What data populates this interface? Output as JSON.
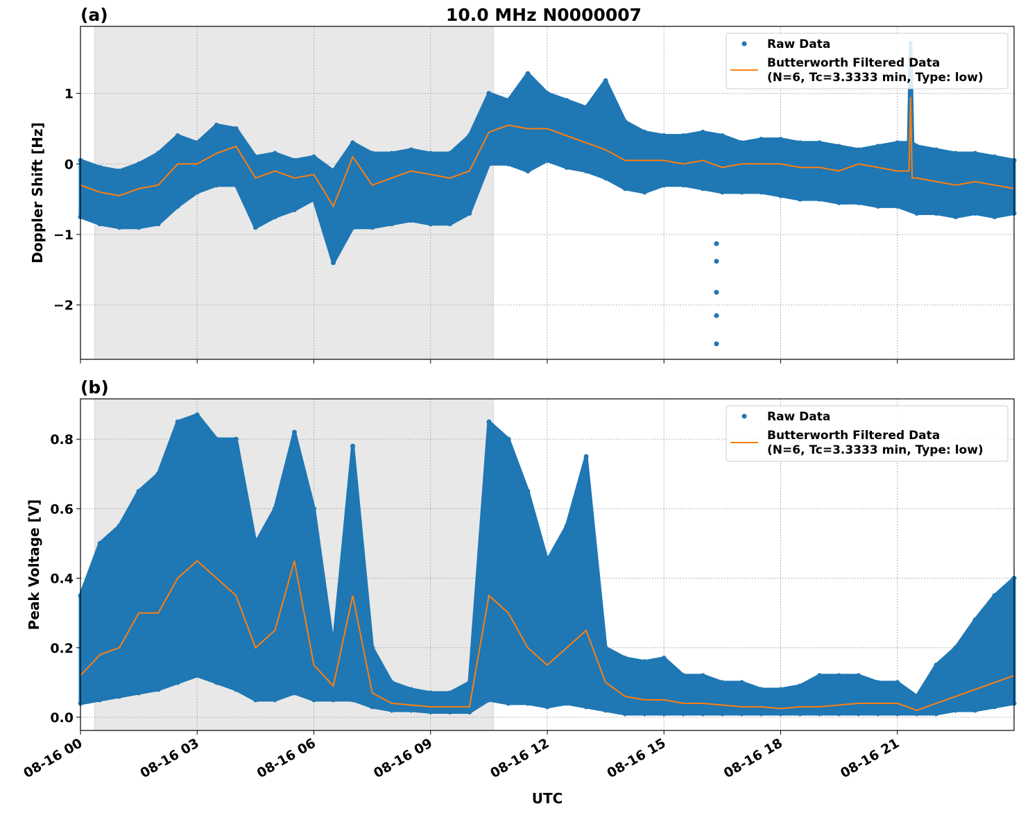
{
  "title": "10.0 MHz N0000007",
  "xlabel": "UTC",
  "colors": {
    "raw": "#1f77b4",
    "filtered": "#ff7f0e",
    "shade": "#e8e8e8"
  },
  "legend": {
    "raw": "Raw Data",
    "filtered_line1": "Butterworth Filtered Data",
    "filtered_line2": "(N=6, Tc=3.3333 min, Type: low)",
    "placement": "upper right"
  },
  "chart_data": [
    {
      "type": "scatter+line",
      "panel_label": "(a)",
      "ylabel": "Doppler Shift [Hz]",
      "xlim_hours": [
        0,
        24
      ],
      "ylim": [
        -2.77,
        1.95
      ],
      "grid": true,
      "shaded_interval": [
        "08-16 00:22",
        "08-16 10:37"
      ],
      "xticks": [
        "08-16 00",
        "08-16 03",
        "08-16 06",
        "08-16 09",
        "08-16 12",
        "08-16 15",
        "08-16 18",
        "08-16 21"
      ],
      "yticks": [
        {
          "v": 1,
          "t": "1"
        },
        {
          "v": 0,
          "t": "0"
        },
        {
          "v": -1,
          "t": "−1"
        },
        {
          "v": -2,
          "t": "−2"
        }
      ],
      "x_hours": [
        0,
        0.5,
        1,
        1.5,
        2,
        2.5,
        3,
        3.5,
        4,
        4.5,
        5,
        5.5,
        6,
        6.5,
        7,
        7.5,
        8,
        8.5,
        9,
        9.5,
        10,
        10.5,
        11,
        11.5,
        12,
        12.5,
        13,
        13.5,
        14,
        14.5,
        15,
        15.5,
        16,
        16.5,
        17,
        17.5,
        18,
        18.5,
        19,
        19.5,
        20,
        20.5,
        21,
        21.5,
        22,
        22.5,
        23,
        23.5,
        24
      ],
      "filtered": [
        -0.3,
        -0.4,
        -0.45,
        -0.35,
        -0.3,
        0.0,
        0.0,
        0.15,
        0.25,
        -0.2,
        -0.1,
        -0.2,
        -0.15,
        -0.6,
        0.1,
        -0.3,
        -0.2,
        -0.1,
        -0.15,
        -0.2,
        -0.1,
        0.45,
        0.55,
        0.5,
        0.5,
        0.4,
        0.3,
        0.2,
        0.05,
        0.05,
        0.05,
        0.0,
        0.05,
        -0.05,
        0.0,
        0.0,
        0.0,
        -0.05,
        -0.05,
        -0.1,
        0.0,
        -0.05,
        -0.1,
        -0.2,
        -0.25,
        -0.3,
        -0.25,
        -0.3,
        -0.35
      ],
      "raw_high": [
        0.05,
        -0.05,
        -0.1,
        0.0,
        0.15,
        0.4,
        0.3,
        0.55,
        0.5,
        0.1,
        0.15,
        0.05,
        0.1,
        -0.1,
        0.3,
        0.15,
        0.15,
        0.2,
        0.15,
        0.15,
        0.4,
        1.0,
        0.9,
        1.28,
        1.0,
        0.9,
        0.8,
        1.18,
        0.6,
        0.45,
        0.4,
        0.4,
        0.45,
        0.4,
        0.3,
        0.35,
        0.35,
        0.3,
        0.3,
        0.25,
        0.2,
        0.25,
        0.3,
        0.25,
        0.2,
        0.15,
        0.15,
        0.1,
        0.05
      ],
      "raw_low": [
        -0.75,
        -0.85,
        -0.9,
        -0.9,
        -0.85,
        -0.6,
        -0.4,
        -0.3,
        -0.3,
        -0.9,
        -0.75,
        -0.65,
        -0.5,
        -1.4,
        -0.9,
        -0.9,
        -0.85,
        -0.8,
        -0.85,
        -0.85,
        -0.7,
        0.0,
        0.0,
        -0.1,
        0.05,
        -0.05,
        -0.1,
        -0.2,
        -0.35,
        -0.4,
        -0.3,
        -0.3,
        -0.35,
        -0.4,
        -0.4,
        -0.4,
        -0.45,
        -0.5,
        -0.5,
        -0.55,
        -0.55,
        -0.6,
        -0.6,
        -0.7,
        -0.7,
        -0.75,
        -0.7,
        -0.75,
        -0.7
      ],
      "spike": {
        "x_hours": 21.34,
        "filtered_peak": 0.95,
        "raw_peak": 1.72
      },
      "outliers": [
        {
          "x_hours": 16.35,
          "y": -1.13
        },
        {
          "x_hours": 16.35,
          "y": -1.38
        },
        {
          "x_hours": 16.35,
          "y": -1.82
        },
        {
          "x_hours": 16.35,
          "y": -2.15
        },
        {
          "x_hours": 16.35,
          "y": -2.55
        }
      ]
    },
    {
      "type": "scatter+line",
      "panel_label": "(b)",
      "ylabel": "Peak Voltage [V]",
      "xlim_hours": [
        0,
        24
      ],
      "ylim": [
        -0.038,
        0.916
      ],
      "grid": true,
      "shaded_interval": [
        "08-16 00:22",
        "08-16 10:37"
      ],
      "xticks": [
        "08-16 00",
        "08-16 03",
        "08-16 06",
        "08-16 09",
        "08-16 12",
        "08-16 15",
        "08-16 18",
        "08-16 21"
      ],
      "yticks": [
        {
          "v": 0.0,
          "t": "0.0"
        },
        {
          "v": 0.2,
          "t": "0.2"
        },
        {
          "v": 0.4,
          "t": "0.4"
        },
        {
          "v": 0.6,
          "t": "0.6"
        },
        {
          "v": 0.8,
          "t": "0.8"
        }
      ],
      "x_hours": [
        0,
        0.5,
        1,
        1.5,
        2,
        2.5,
        3,
        3.5,
        4,
        4.5,
        5,
        5.5,
        6,
        6.5,
        7,
        7.5,
        8,
        8.5,
        9,
        9.5,
        10,
        10.5,
        11,
        11.5,
        12,
        12.5,
        13,
        13.5,
        14,
        14.5,
        15,
        15.5,
        16,
        16.5,
        17,
        17.5,
        18,
        18.5,
        19,
        19.5,
        20,
        20.5,
        21,
        21.5,
        22,
        22.5,
        23,
        23.5,
        24
      ],
      "filtered": [
        0.12,
        0.18,
        0.2,
        0.3,
        0.3,
        0.4,
        0.45,
        0.4,
        0.35,
        0.2,
        0.25,
        0.45,
        0.15,
        0.09,
        0.35,
        0.07,
        0.04,
        0.035,
        0.03,
        0.03,
        0.03,
        0.35,
        0.3,
        0.2,
        0.15,
        0.2,
        0.25,
        0.1,
        0.06,
        0.05,
        0.05,
        0.04,
        0.04,
        0.035,
        0.03,
        0.03,
        0.025,
        0.03,
        0.03,
        0.035,
        0.04,
        0.04,
        0.04,
        0.02,
        0.04,
        0.06,
        0.08,
        0.1,
        0.12
      ],
      "raw_high": [
        0.35,
        0.5,
        0.55,
        0.65,
        0.7,
        0.85,
        0.87,
        0.8,
        0.8,
        0.5,
        0.6,
        0.82,
        0.6,
        0.2,
        0.78,
        0.2,
        0.1,
        0.08,
        0.07,
        0.07,
        0.1,
        0.85,
        0.8,
        0.65,
        0.45,
        0.55,
        0.75,
        0.2,
        0.17,
        0.16,
        0.17,
        0.12,
        0.12,
        0.1,
        0.1,
        0.08,
        0.08,
        0.09,
        0.12,
        0.12,
        0.12,
        0.1,
        0.1,
        0.06,
        0.15,
        0.2,
        0.28,
        0.35,
        0.4
      ],
      "raw_low": [
        0.04,
        0.05,
        0.06,
        0.07,
        0.08,
        0.1,
        0.12,
        0.1,
        0.08,
        0.05,
        0.05,
        0.07,
        0.05,
        0.05,
        0.05,
        0.03,
        0.02,
        0.02,
        0.015,
        0.015,
        0.015,
        0.05,
        0.04,
        0.04,
        0.03,
        0.04,
        0.03,
        0.02,
        0.01,
        0.01,
        0.01,
        0.01,
        0.01,
        0.01,
        0.01,
        0.01,
        0.01,
        0.01,
        0.01,
        0.01,
        0.01,
        0.01,
        0.01,
        0.01,
        0.01,
        0.02,
        0.02,
        0.03,
        0.04
      ]
    }
  ]
}
